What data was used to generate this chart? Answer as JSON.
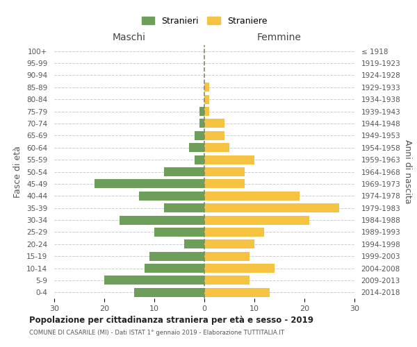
{
  "age_groups": [
    "100+",
    "95-99",
    "90-94",
    "85-89",
    "80-84",
    "75-79",
    "70-74",
    "65-69",
    "60-64",
    "55-59",
    "50-54",
    "45-49",
    "40-44",
    "35-39",
    "30-34",
    "25-29",
    "20-24",
    "15-19",
    "10-14",
    "5-9",
    "0-4"
  ],
  "birth_years": [
    "≤ 1918",
    "1919-1923",
    "1924-1928",
    "1929-1933",
    "1934-1938",
    "1939-1943",
    "1944-1948",
    "1949-1953",
    "1954-1958",
    "1959-1963",
    "1964-1968",
    "1969-1973",
    "1974-1978",
    "1979-1983",
    "1984-1988",
    "1989-1993",
    "1994-1998",
    "1999-2003",
    "2004-2008",
    "2009-2013",
    "2014-2018"
  ],
  "maschi": [
    0,
    0,
    0,
    0,
    0,
    1,
    1,
    2,
    3,
    2,
    8,
    22,
    13,
    8,
    17,
    10,
    4,
    11,
    12,
    20,
    14
  ],
  "femmine": [
    0,
    0,
    0,
    1,
    1,
    1,
    4,
    4,
    5,
    10,
    8,
    8,
    19,
    27,
    21,
    12,
    10,
    9,
    14,
    9,
    13
  ],
  "maschi_color": "#6d9e5a",
  "femmine_color": "#f5c242",
  "background_color": "#ffffff",
  "grid_color": "#cccccc",
  "title": "Popolazione per cittadinanza straniera per età e sesso - 2019",
  "subtitle": "COMUNE DI CASARILE (MI) - Dati ISTAT 1° gennaio 2019 - Elaborazione TUTTITALIA.IT",
  "ylabel_left": "Fasce di età",
  "ylabel_right": "Anni di nascita",
  "xlabel_maschi": "Maschi",
  "xlabel_femmine": "Femmine",
  "legend_maschi": "Stranieri",
  "legend_femmine": "Straniere",
  "xlim": 30,
  "center_line_color": "#888866"
}
